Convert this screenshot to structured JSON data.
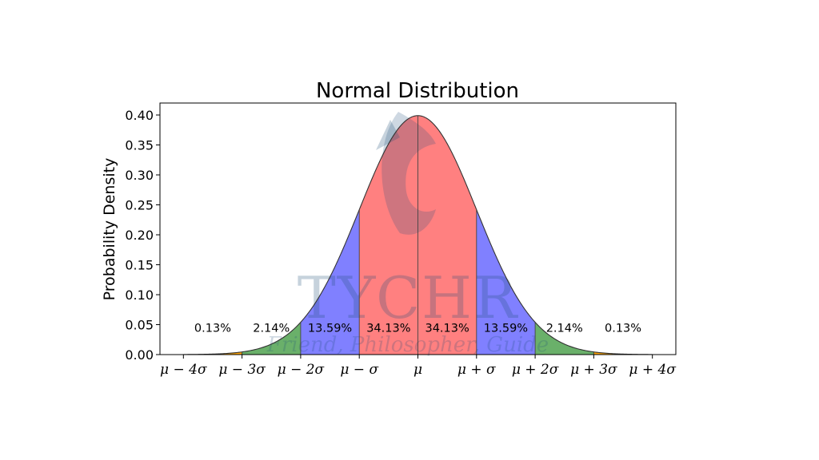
{
  "chart_data": {
    "type": "area",
    "title": "Normal Distribution",
    "xlabel": "",
    "ylabel": "Probability Density",
    "xlim": [
      -4.4,
      4.4
    ],
    "ylim": [
      0.0,
      0.42
    ],
    "grid": false,
    "y_ticks": [
      "0.00",
      "0.05",
      "0.10",
      "0.15",
      "0.20",
      "0.25",
      "0.30",
      "0.35",
      "0.40"
    ],
    "y_tick_values": [
      0.0,
      0.05,
      0.1,
      0.15,
      0.2,
      0.25,
      0.3,
      0.35,
      0.4
    ],
    "x_ticks": [
      "μ − 4σ",
      "μ − 3σ",
      "μ − 2σ",
      "μ − σ",
      "μ",
      "μ + σ",
      "μ + 2σ",
      "μ + 3σ",
      "μ + 4σ"
    ],
    "x_tick_values": [
      -4,
      -3,
      -2,
      -1,
      0,
      1,
      2,
      3,
      4
    ],
    "curve": {
      "mean": 0,
      "sd": 1,
      "x_range": [
        -4,
        4
      ]
    },
    "regions": [
      {
        "from": -4,
        "to": -3,
        "label": "0.13%",
        "color": "#ffa500"
      },
      {
        "from": -3,
        "to": -2,
        "label": "2.14%",
        "color": "#6ab06a"
      },
      {
        "from": -2,
        "to": -1,
        "label": "13.59%",
        "color": "#8080ff"
      },
      {
        "from": -1,
        "to": 0,
        "label": "34.13%",
        "color": "#ff8080"
      },
      {
        "from": 0,
        "to": 1,
        "label": "34.13%",
        "color": "#ff8080"
      },
      {
        "from": 1,
        "to": 2,
        "label": "13.59%",
        "color": "#8080ff"
      },
      {
        "from": 2,
        "to": 3,
        "label": "2.14%",
        "color": "#6ab06a"
      },
      {
        "from": 3,
        "to": 4,
        "label": "0.13%",
        "color": "#ffa500"
      }
    ],
    "label_y": 0.045
  },
  "watermark": {
    "brand": "TYCHR",
    "tagline": "Friend, Philosopher, Guide",
    "color": "#1f4e79"
  }
}
